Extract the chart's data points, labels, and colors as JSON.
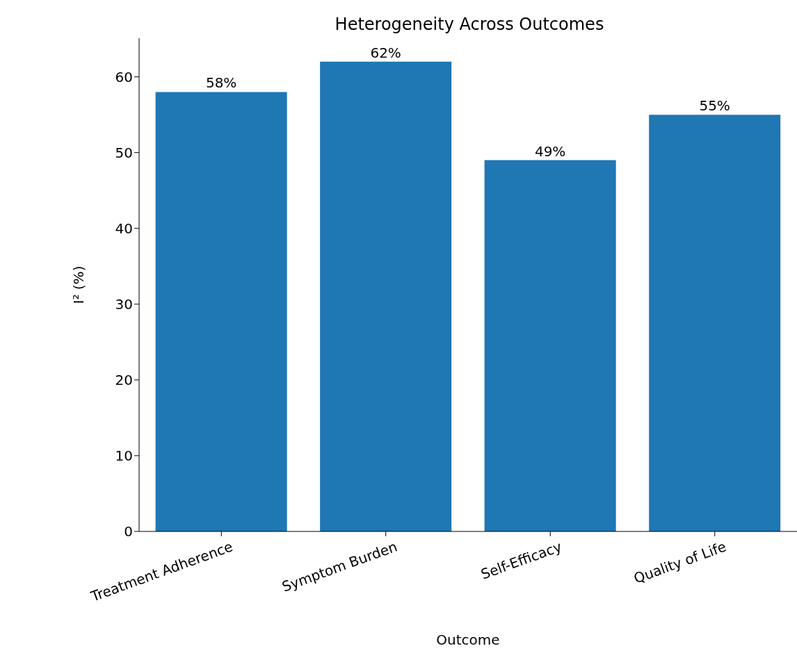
{
  "chart_data": {
    "type": "bar",
    "title": "Heterogeneity Across Outcomes",
    "xlabel": "Outcome",
    "ylabel": "I² (%)",
    "categories": [
      "Treatment Adherence",
      "Symptom Burden",
      "Self-Efficacy",
      "Quality of Life"
    ],
    "values": [
      58,
      62,
      49,
      55
    ],
    "color": "#1f77b4",
    "value_labels": [
      "58%",
      "62%",
      "49%",
      "55%"
    ],
    "ylim": [
      0,
      65.1
    ],
    "yticks": [
      0,
      10,
      20,
      30,
      40,
      50,
      60
    ],
    "grid": false
  }
}
